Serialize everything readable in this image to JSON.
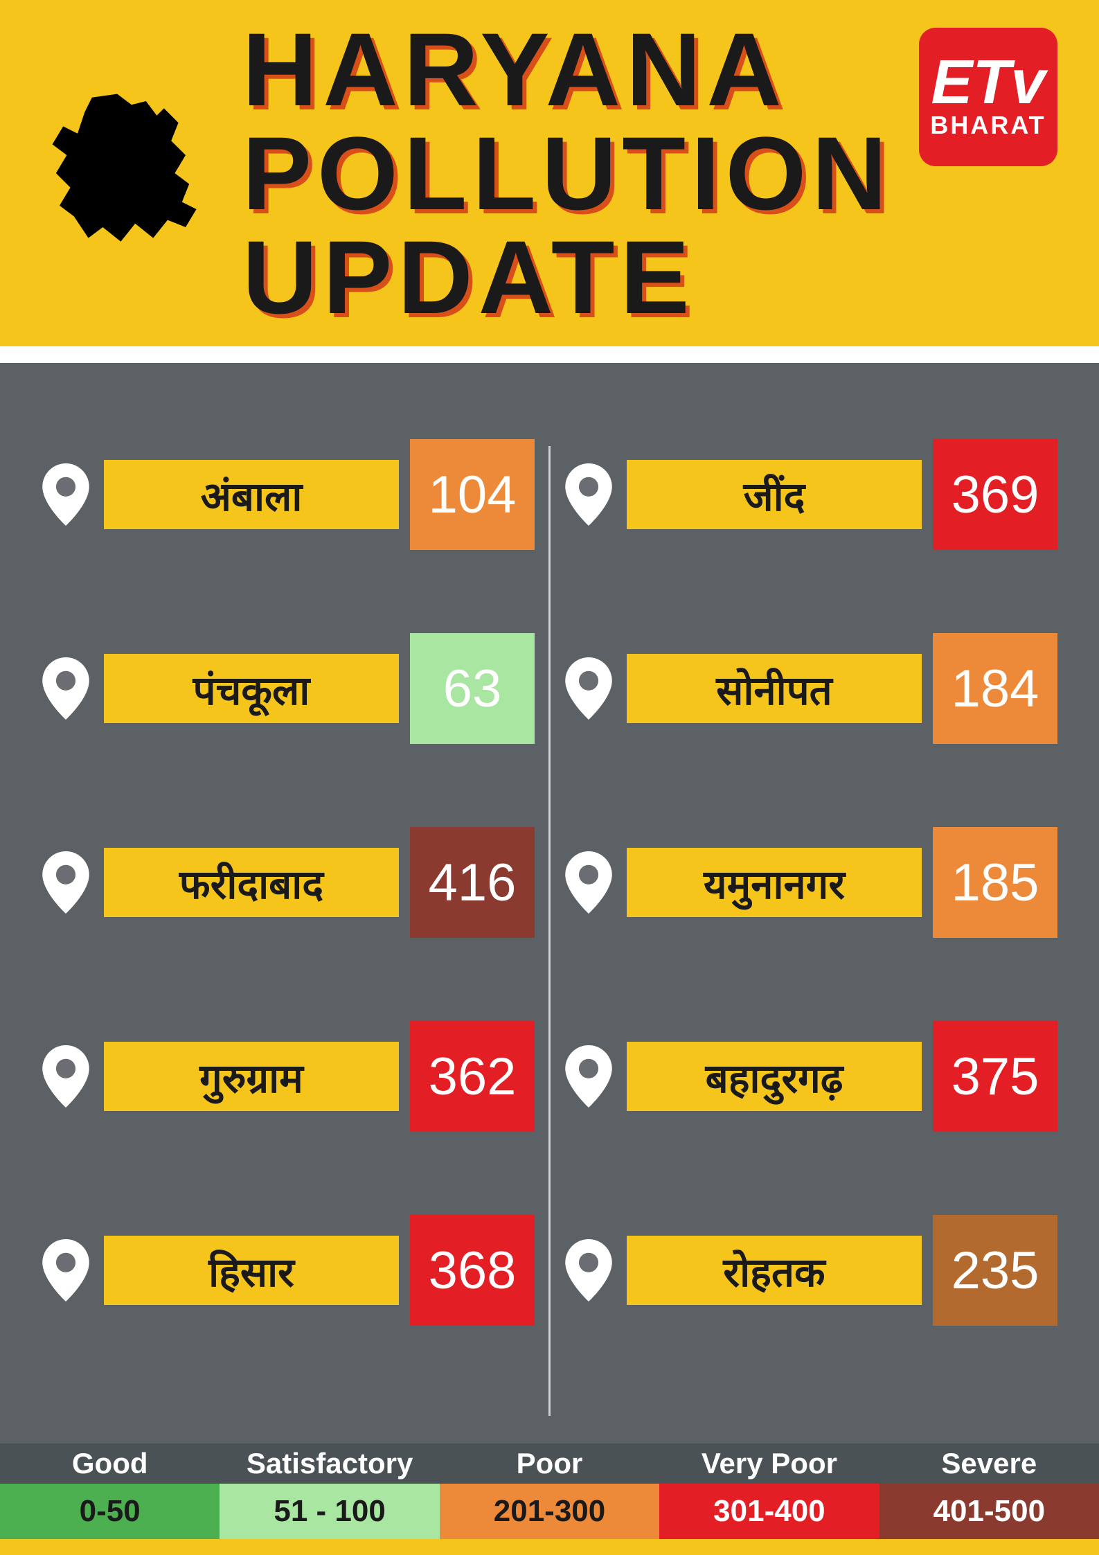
{
  "header": {
    "title_line1": "HARYANA",
    "title_line2": "POLLUTION  UPDATE",
    "title_color": "#1a1a1a",
    "title_shadow": "#d94f1a",
    "bg_color": "#f5c51c",
    "logo_top": "ETv",
    "logo_bottom": "BHARAT",
    "logo_bg": "#e31e24"
  },
  "colors": {
    "city_label_bg": "#f5c51c",
    "city_label_text": "#1a1a1a",
    "aqi_text": "#ffffff",
    "main_bg": "#6a6e72",
    "pin_color": "#ffffff",
    "divider": "#d0d0d0"
  },
  "aqi_scale": {
    "good": {
      "bg": "#4caf50",
      "text": "#1a1a1a",
      "min": 0,
      "max": 50
    },
    "satisfactory": {
      "bg": "#a8e6a1",
      "text": "#1a1a1a",
      "min": 51,
      "max": 100
    },
    "moderate": {
      "bg": "#ed8a3a",
      "text": "#ffffff",
      "min": 101,
      "max": 200
    },
    "poor": {
      "bg": "#b36a2e",
      "text": "#ffffff",
      "min": 201,
      "max": 300
    },
    "very_poor": {
      "bg": "#e31e24",
      "text": "#ffffff",
      "min": 301,
      "max": 400
    },
    "severe": {
      "bg": "#8a3a2e",
      "text": "#ffffff",
      "min": 401,
      "max": 500
    }
  },
  "cities_left": [
    {
      "name": "अंबाला",
      "aqi": 104,
      "box_color": "#ed8a3a"
    },
    {
      "name": "पंचकूला",
      "aqi": 63,
      "box_color": "#a8e6a1"
    },
    {
      "name": "फरीदाबाद",
      "aqi": 416,
      "box_color": "#8a3a2e"
    },
    {
      "name": "गुरुग्राम",
      "aqi": 362,
      "box_color": "#e31e24"
    },
    {
      "name": "हिसार",
      "aqi": 368,
      "box_color": "#e31e24"
    }
  ],
  "cities_right": [
    {
      "name": "जींद",
      "aqi": 369,
      "box_color": "#e31e24"
    },
    {
      "name": "सोनीपत",
      "aqi": 184,
      "box_color": "#ed8a3a"
    },
    {
      "name": "यमुनानगर",
      "aqi": 185,
      "box_color": "#ed8a3a"
    },
    {
      "name": "बहादुरगढ़",
      "aqi": 375,
      "box_color": "#e31e24"
    },
    {
      "name": "रोहतक",
      "aqi": 235,
      "box_color": "#b36a2e"
    }
  ],
  "legend": [
    {
      "label": "Good",
      "range": "0-50",
      "bg": "#4caf50",
      "text": "#1a1a1a"
    },
    {
      "label": "Satisfactory",
      "range": "51 - 100",
      "bg": "#a8e6a1",
      "text": "#1a1a1a"
    },
    {
      "label": "Poor",
      "range": "201-300",
      "bg": "#ed8a3a",
      "text": "#1a1a1a"
    },
    {
      "label": "Very Poor",
      "range": "301-400",
      "bg": "#e31e24",
      "text": "#ffffff"
    },
    {
      "label": "Severe",
      "range": "401-500",
      "bg": "#8a3a2e",
      "text": "#ffffff"
    }
  ]
}
